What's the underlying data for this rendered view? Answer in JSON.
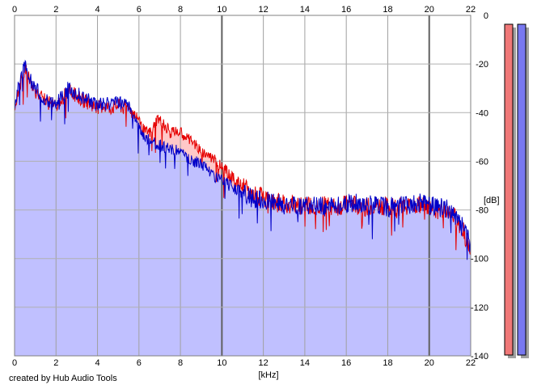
{
  "footer": {
    "credit": "created by Hub Audio Tools"
  },
  "chart_data": {
    "type": "area",
    "xlabel": "[kHz]",
    "ylabel": "[dB]",
    "xlim": [
      0,
      22
    ],
    "ylim": [
      -140,
      0
    ],
    "xticks": [
      0,
      2,
      4,
      6,
      8,
      10,
      12,
      14,
      16,
      18,
      20,
      22
    ],
    "yticks": [
      0,
      -20,
      -40,
      -60,
      -80,
      -100,
      -120,
      -140
    ],
    "grid": true,
    "series": [
      {
        "color": "#e60000",
        "fill": "#ffc8c8",
        "x": [
          0,
          0.3,
          0.5,
          0.8,
          1.0,
          1.3,
          1.6,
          2.0,
          2.3,
          2.6,
          3.0,
          3.3,
          3.6,
          4.0,
          4.3,
          4.6,
          5.0,
          5.3,
          5.6,
          6.0,
          6.3,
          6.6,
          6.9,
          7.2,
          7.5,
          8.0,
          8.3,
          8.6,
          9.0,
          9.3,
          9.6,
          10.0,
          10.4,
          10.8,
          11.2,
          11.6,
          12.0,
          12.5,
          13.0,
          13.5,
          14.0,
          14.5,
          15.0,
          15.5,
          16.0,
          16.5,
          17.0,
          17.5,
          18.0,
          18.5,
          19.0,
          19.5,
          20.0,
          20.5,
          21.0,
          21.3,
          21.6,
          21.8,
          22.0
        ],
        "values": [
          -38,
          -27,
          -22,
          -28,
          -31,
          -34,
          -36,
          -37,
          -34,
          -31,
          -33,
          -35,
          -36,
          -38,
          -37,
          -38,
          -37,
          -38,
          -38,
          -44,
          -48,
          -48,
          -42,
          -45,
          -48,
          -48,
          -50,
          -52,
          -56,
          -57,
          -59,
          -62,
          -66,
          -69,
          -72,
          -74,
          -75,
          -77,
          -77,
          -78,
          -78,
          -78,
          -78,
          -79,
          -78,
          -78,
          -79,
          -78,
          -79,
          -79,
          -78,
          -78,
          -79,
          -80,
          -81,
          -84,
          -88,
          -92,
          -98
        ]
      },
      {
        "color": "#0000c8",
        "fill": "#c0c0ff",
        "x": [
          0,
          0.3,
          0.5,
          0.8,
          1.0,
          1.3,
          1.6,
          2.0,
          2.3,
          2.6,
          3.0,
          3.3,
          3.6,
          4.0,
          4.3,
          4.6,
          5.0,
          5.3,
          5.6,
          6.0,
          6.3,
          6.6,
          6.9,
          7.2,
          7.5,
          8.0,
          8.3,
          8.6,
          9.0,
          9.3,
          9.6,
          10.0,
          10.4,
          10.8,
          11.2,
          11.6,
          12.0,
          12.5,
          13.0,
          13.5,
          14.0,
          14.5,
          15.0,
          15.5,
          16.0,
          16.5,
          17.0,
          17.5,
          18.0,
          18.5,
          19.0,
          19.5,
          20.0,
          20.5,
          21.0,
          21.3,
          21.6,
          21.8,
          22.0
        ],
        "values": [
          -38,
          -25,
          -21,
          -27,
          -30,
          -33,
          -35,
          -36,
          -33,
          -30,
          -32,
          -34,
          -35,
          -37,
          -36,
          -37,
          -36,
          -37,
          -38,
          -46,
          -50,
          -52,
          -53,
          -54,
          -55,
          -56,
          -58,
          -60,
          -61,
          -63,
          -66,
          -68,
          -70,
          -72,
          -74,
          -76,
          -76,
          -77,
          -78,
          -78,
          -78,
          -78,
          -79,
          -78,
          -78,
          -77,
          -78,
          -78,
          -79,
          -78,
          -78,
          -77,
          -78,
          -79,
          -80,
          -83,
          -86,
          -90,
          -96
        ]
      }
    ]
  },
  "level_meters": [
    {
      "color": "#f07878",
      "shadow": "#a0a0a0",
      "level": 1.0
    },
    {
      "color": "#7878f0",
      "shadow": "#a0a0a0",
      "level": 1.0
    }
  ]
}
